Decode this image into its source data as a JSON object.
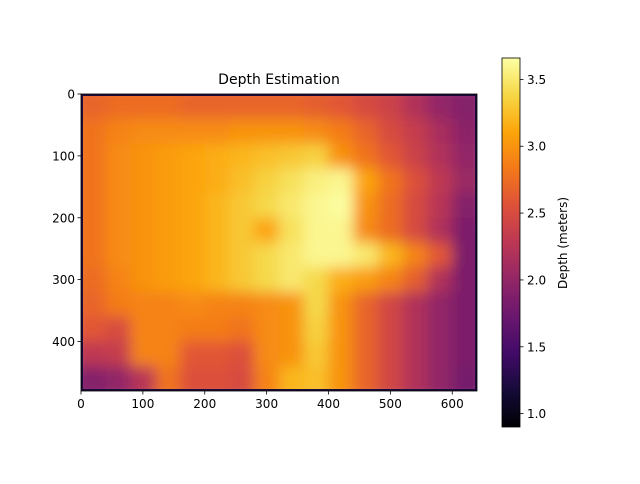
{
  "chart_data": {
    "type": "heatmap",
    "title": "Depth Estimation",
    "xlabel": "",
    "ylabel": "",
    "xlim": [
      0,
      640
    ],
    "ylim": [
      480,
      0
    ],
    "xticks": [
      "0",
      "100",
      "200",
      "300",
      "400",
      "500",
      "600"
    ],
    "yticks": [
      "0",
      "100",
      "200",
      "300",
      "400"
    ],
    "xtick_values": [
      0,
      100,
      200,
      300,
      400,
      500,
      600
    ],
    "ytick_values": [
      0,
      100,
      200,
      300,
      400
    ],
    "colormap": "inferno",
    "colorbar": {
      "label": "Depth (meters)",
      "range": [
        0.9,
        3.66
      ],
      "ticks": [
        "1.0",
        "1.5",
        "2.0",
        "2.5",
        "3.0",
        "3.5"
      ],
      "tick_values": [
        1.0,
        1.5,
        2.0,
        2.5,
        3.0,
        3.5
      ]
    },
    "grid_cell_size": 40,
    "approx_depth_grid": [
      [
        2.7,
        2.75,
        2.75,
        2.75,
        2.7,
        2.7,
        2.7,
        2.7,
        2.7,
        2.65,
        2.6,
        2.5,
        2.4,
        2.2,
        2.0,
        1.9
      ],
      [
        2.8,
        2.9,
        2.95,
        2.95,
        2.95,
        2.95,
        3.0,
        3.0,
        3.0,
        2.95,
        2.85,
        2.7,
        2.5,
        2.35,
        2.15,
        1.95
      ],
      [
        2.8,
        2.95,
        3.0,
        3.05,
        3.1,
        3.15,
        3.2,
        3.25,
        3.3,
        3.35,
        3.0,
        2.8,
        2.6,
        2.4,
        2.2,
        2.0
      ],
      [
        2.8,
        2.95,
        3.0,
        3.05,
        3.1,
        3.15,
        3.25,
        3.35,
        3.45,
        3.55,
        3.6,
        3.1,
        2.8,
        2.55,
        2.3,
        2.05
      ],
      [
        2.8,
        2.95,
        3.0,
        3.05,
        3.1,
        3.2,
        3.3,
        3.4,
        3.5,
        3.6,
        3.65,
        3.0,
        2.75,
        2.5,
        2.25,
        1.9
      ],
      [
        2.8,
        2.95,
        3.0,
        3.05,
        3.1,
        3.2,
        3.3,
        3.1,
        3.45,
        3.6,
        3.6,
        2.95,
        2.75,
        2.5,
        2.2,
        1.85
      ],
      [
        2.8,
        2.95,
        3.0,
        3.05,
        3.1,
        3.2,
        3.3,
        3.4,
        3.5,
        3.6,
        3.6,
        3.5,
        3.2,
        2.9,
        2.6,
        1.85
      ],
      [
        2.75,
        2.9,
        3.0,
        3.05,
        3.1,
        3.2,
        3.3,
        3.4,
        3.5,
        3.4,
        3.15,
        3.05,
        2.9,
        2.65,
        2.2,
        1.85
      ],
      [
        2.7,
        2.85,
        2.9,
        2.9,
        2.95,
        2.9,
        2.9,
        2.95,
        3.0,
        3.4,
        3.0,
        2.7,
        2.45,
        2.2,
        2.0,
        1.85
      ],
      [
        2.6,
        2.5,
        2.9,
        2.9,
        2.85,
        2.85,
        2.8,
        2.95,
        3.0,
        3.35,
        3.0,
        2.7,
        2.45,
        2.2,
        2.0,
        1.85
      ],
      [
        2.3,
        2.35,
        2.9,
        2.9,
        2.6,
        2.6,
        2.55,
        2.95,
        3.0,
        3.3,
        3.0,
        2.7,
        2.45,
        2.2,
        2.0,
        1.85
      ],
      [
        1.9,
        2.0,
        2.25,
        2.8,
        2.55,
        2.55,
        2.5,
        2.9,
        3.2,
        3.25,
        3.0,
        2.7,
        2.45,
        2.2,
        2.0,
        1.8
      ]
    ]
  }
}
